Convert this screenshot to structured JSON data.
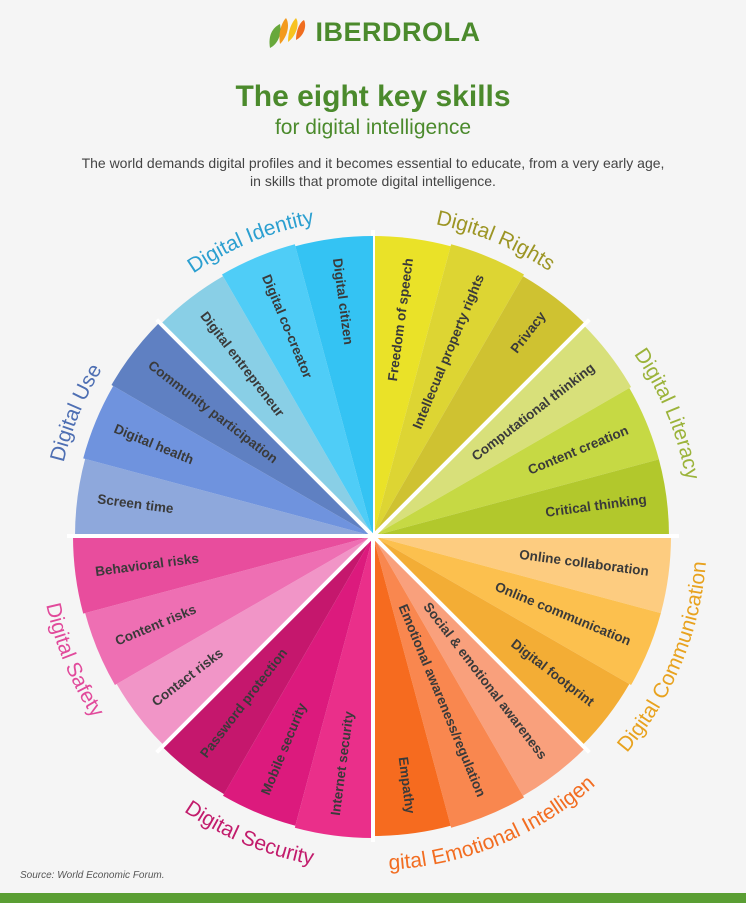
{
  "brand": {
    "name": "IBERDROLA"
  },
  "title": "The eight key skills",
  "subtitle": "for digital intelligence",
  "intro_line1": "The world demands digital profiles and it becomes essential to educate, from a very early age,",
  "intro_line2": "in skills that promote digital intelligence.",
  "source": "Source: World Economic Forum.",
  "groups": [
    {
      "id": "rights",
      "label": "Digital Rights",
      "color": "#9c9524",
      "skills": [
        {
          "label": "Freedom of speech",
          "color": "#eae228"
        },
        {
          "label": "Intellecual property rights",
          "color": "#ddd533"
        },
        {
          "label": "Privacy",
          "color": "#cfc231"
        }
      ]
    },
    {
      "id": "literacy",
      "label": "Digital Literacy",
      "color": "#9bb33a",
      "skills": [
        {
          "label": "Computational thinking",
          "color": "#d8e07a"
        },
        {
          "label": "Content creation",
          "color": "#c6d944"
        },
        {
          "label": "Critical thinking",
          "color": "#b2c82c"
        }
      ]
    },
    {
      "id": "communication",
      "label": "Digital Communication",
      "color": "#e8a21e",
      "skills": [
        {
          "label": "Online collaboration",
          "color": "#fdcc80"
        },
        {
          "label": "Online communication",
          "color": "#fcc04e"
        },
        {
          "label": "Digital footprint",
          "color": "#f3ad35"
        }
      ]
    },
    {
      "id": "emotional",
      "label": "Digital Emotional Intelligence",
      "color": "#f26d21",
      "skills": [
        {
          "label": "Social & emotional awareness",
          "color": "#f9a07c"
        },
        {
          "label": "Emotional awareness/regulation",
          "color": "#f9874f"
        },
        {
          "label": "Empathy",
          "color": "#f66b1f"
        }
      ]
    },
    {
      "id": "security",
      "label": "Digital Security",
      "color": "#c21c6c",
      "skills": [
        {
          "label": "Internet security",
          "color": "#ea2f8a"
        },
        {
          "label": "Mobile security",
          "color": "#dc1a7d"
        },
        {
          "label": "Password protection",
          "color": "#c5176d"
        }
      ]
    },
    {
      "id": "safety",
      "label": "Digital Safety",
      "color": "#e14a9b",
      "skills": [
        {
          "label": "Contact risks",
          "color": "#f195c7"
        },
        {
          "label": "Content risks",
          "color": "#ee6fb3"
        },
        {
          "label": "Behavioral risks",
          "color": "#e84d9d"
        }
      ]
    },
    {
      "id": "use",
      "label": "Digital Use",
      "color": "#4e6fb3",
      "skills": [
        {
          "label": "Screen time",
          "color": "#8ea8dc"
        },
        {
          "label": "Digital health",
          "color": "#6f93de"
        },
        {
          "label": "Community participation",
          "color": "#5f80c2"
        }
      ]
    },
    {
      "id": "identity",
      "label": "Digital Identity",
      "color": "#2b9fd0",
      "skills": [
        {
          "label": "Digital entrepreneur",
          "color": "#89cfe6"
        },
        {
          "label": "Digital co-creator",
          "color": "#4fcdf7"
        },
        {
          "label": "Digital citizen",
          "color": "#34c3f3"
        }
      ]
    }
  ]
}
